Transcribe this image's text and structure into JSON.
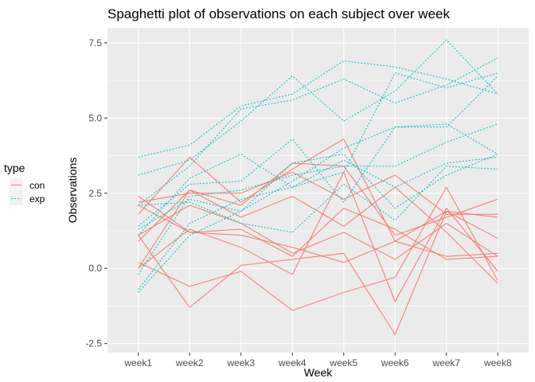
{
  "chart_data": {
    "type": "line",
    "title": "Spaghetti plot of observations on each subject over week",
    "xlabel": "Week",
    "ylabel": "Observations",
    "categories": [
      "week1",
      "week2",
      "week3",
      "week4",
      "week5",
      "week6",
      "week7",
      "week8"
    ],
    "ylim": [
      -2.8,
      8.0
    ],
    "yticks": [
      -2.5,
      0.0,
      2.5,
      5.0,
      7.5
    ],
    "ytick_labels": [
      "-2.5",
      "0.0",
      "2.5",
      "5.0",
      "7.5"
    ],
    "grid": true,
    "legend": {
      "title": "type",
      "position": "left",
      "entries": [
        {
          "label": "con",
          "color": "#F8766D",
          "linestyle": "solid"
        },
        {
          "label": "exp",
          "color": "#00BFC4",
          "linestyle": "dotted"
        }
      ]
    },
    "series": [
      {
        "group": "con",
        "values": [
          0.2,
          -0.6,
          -0.1,
          -1.4,
          -0.8,
          -0.3,
          2.7,
          -0.4
        ]
      },
      {
        "group": "con",
        "values": [
          1.1,
          -1.3,
          0.1,
          0.3,
          0.5,
          -2.2,
          1.9,
          1.7
        ]
      },
      {
        "group": "con",
        "values": [
          2.1,
          1.2,
          1.1,
          0.7,
          0.2,
          0.9,
          1.9,
          1.0
        ]
      },
      {
        "group": "con",
        "values": [
          1.8,
          3.7,
          2.2,
          3.3,
          4.3,
          0.9,
          0.4,
          0.5
        ]
      },
      {
        "group": "con",
        "values": [
          0.9,
          2.6,
          2.1,
          3.5,
          3.4,
          1.1,
          1.7,
          2.3
        ]
      },
      {
        "group": "con",
        "values": [
          0.0,
          2.6,
          1.7,
          2.4,
          1.4,
          2.7,
          1.2,
          -0.5
        ]
      },
      {
        "group": "con",
        "values": [
          2.4,
          1.2,
          1.3,
          0.4,
          2.0,
          1.3,
          0.3,
          0.4
        ]
      },
      {
        "group": "con",
        "values": [
          0.0,
          1.3,
          0.7,
          -0.2,
          3.2,
          -1.1,
          2.0,
          -0.1
        ]
      },
      {
        "group": "con",
        "values": [
          1.1,
          2.1,
          1.5,
          0.5,
          1.2,
          0.3,
          1.5,
          0.4
        ]
      },
      {
        "group": "con",
        "values": [
          2.2,
          2.5,
          2.5,
          3.2,
          2.3,
          3.1,
          1.8,
          1.8
        ]
      },
      {
        "group": "exp",
        "values": [
          3.7,
          4.1,
          5.4,
          5.8,
          6.9,
          6.7,
          6.3,
          5.8
        ]
      },
      {
        "group": "exp",
        "values": [
          3.1,
          3.6,
          4.9,
          6.4,
          4.9,
          5.9,
          7.6,
          5.8
        ]
      },
      {
        "group": "exp",
        "values": [
          2.1,
          3.4,
          5.3,
          5.6,
          6.3,
          5.5,
          6.1,
          7.0
        ]
      },
      {
        "group": "exp",
        "values": [
          1.1,
          3.0,
          3.8,
          2.7,
          3.2,
          6.5,
          6.0,
          6.5
        ]
      },
      {
        "group": "exp",
        "values": [
          1.4,
          2.8,
          2.9,
          4.3,
          2.2,
          4.7,
          4.7,
          6.4
        ]
      },
      {
        "group": "exp",
        "values": [
          -0.7,
          1.5,
          2.3,
          2.7,
          3.6,
          2.7,
          3.5,
          3.7
        ]
      },
      {
        "group": "exp",
        "values": [
          -0.2,
          2.4,
          2.6,
          3.1,
          3.4,
          3.4,
          4.2,
          4.8
        ]
      },
      {
        "group": "exp",
        "values": [
          -0.8,
          1.1,
          1.9,
          2.9,
          4.0,
          4.7,
          4.8,
          3.8
        ]
      },
      {
        "group": "exp",
        "values": [
          1.3,
          2.3,
          1.9,
          3.5,
          3.8,
          2.0,
          3.1,
          3.8
        ]
      },
      {
        "group": "exp",
        "values": [
          2.1,
          2.2,
          1.5,
          1.2,
          2.8,
          1.6,
          3.4,
          3.3
        ]
      }
    ]
  }
}
